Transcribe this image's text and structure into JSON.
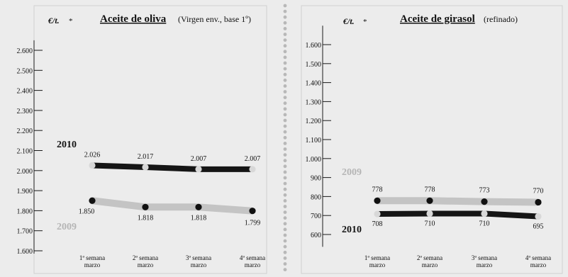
{
  "colors": {
    "background": "#ececec",
    "series_2010": "#151515",
    "series_2009": "#c4c4c4",
    "divider_dots": "#b8b8b8",
    "axis": "#1a1a1a"
  },
  "chart_data": [
    {
      "type": "line",
      "unit_label": "€/t.",
      "unit_mark": "*",
      "title": "Aceite de oliva",
      "subtitle": "(Virgen env., base 1º)",
      "categories": [
        "1ª semana marzo",
        "2ª semana marzo",
        "3ª semana marzo",
        "4ª semana marzo"
      ],
      "ylim": [
        1600,
        2650
      ],
      "yticks": [
        1600,
        1700,
        1800,
        1900,
        2000,
        2100,
        2200,
        2300,
        2400,
        2500,
        2600
      ],
      "ytick_labels": [
        "1.600",
        "1.700",
        "1.800",
        "1.900",
        "2.000",
        "2.100",
        "2.200",
        "2.300",
        "2.400",
        "2.500",
        "2.600"
      ],
      "series": [
        {
          "name": "2010",
          "values": [
            2026,
            2017,
            2007,
            2007
          ],
          "labels": [
            "2.026",
            "2.017",
            "2.007",
            "2.007"
          ]
        },
        {
          "name": "2009",
          "values": [
            1850,
            1818,
            1818,
            1799
          ],
          "labels": [
            "1.850",
            "1.818",
            "1.818",
            "1.799"
          ]
        }
      ]
    },
    {
      "type": "line",
      "unit_label": "€/t.",
      "unit_mark": "*",
      "title": "Aceite de girasol",
      "subtitle": "(refinado)",
      "categories": [
        "1ª semana marzo",
        "2ª semana marzo",
        "3ª semana marzo",
        "4ª semana marzo"
      ],
      "ylim": [
        550,
        1700
      ],
      "yticks": [
        600,
        700,
        800,
        900,
        1000,
        1100,
        1200,
        1300,
        1400,
        1500,
        1600
      ],
      "ytick_labels": [
        "600",
        "700",
        "800",
        "900",
        "1.000",
        "1.100",
        "1.200",
        "1.300",
        "1.400",
        "1.500",
        "1.600"
      ],
      "series": [
        {
          "name": "2010",
          "values": [
            708,
            710,
            710,
            695
          ],
          "labels": [
            "708",
            "710",
            "710",
            "695"
          ]
        },
        {
          "name": "2009",
          "values": [
            778,
            778,
            773,
            770
          ],
          "labels": [
            "778",
            "778",
            "773",
            "770"
          ]
        }
      ]
    }
  ]
}
